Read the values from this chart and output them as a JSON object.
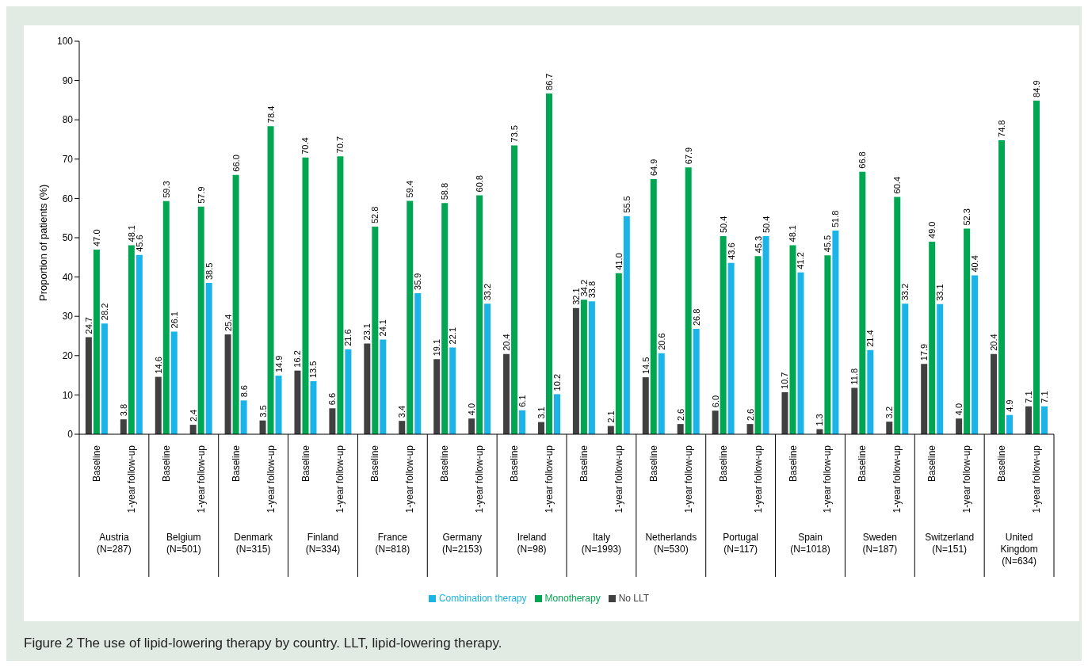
{
  "chart_data": {
    "type": "bar",
    "title": "Figure 2  The use of lipid-lowering therapy by country. LLT, lipid-lowering therapy.",
    "ylabel": "Proportion of patients (%)",
    "categories": [
      "Baseline",
      "1-year follow-up",
      "Baseline",
      "1-year follow-up",
      "Baseline",
      "1-year follow-up",
      "Baseline",
      "1-year follow-up",
      "Baseline",
      "1-year follow-up",
      "Baseline",
      "1-year follow-up",
      "Baseline",
      "1-year follow-up",
      "Baseline",
      "1-year follow-up",
      "Baseline",
      "1-year follow-up",
      "Baseline",
      "1-year follow-up",
      "Baseline",
      "1-year follow-up",
      "Baseline",
      "1-year follow-up",
      "Baseline",
      "1-year follow-up",
      "Baseline",
      "1-year follow-up"
    ],
    "annotations": [
      "Austria\n(N=287)",
      "Belgium\n(N=501)",
      "Denmark\n(N=315)",
      "Finland\n(N=334)",
      "France\n(N=818)",
      "Germany\n(N=2153)",
      "Ireland\n(N=98)",
      "Italy\n(N=1993)",
      "Netherlands\n(N=530)",
      "Portugal\n(N=117)",
      "Spain\n(N=1018)",
      "Sweden\n(N=187)",
      "Switzerland\n(N=151)",
      "United\nKingdom\n(N=634)"
    ],
    "series": [
      {
        "name": "No LLT",
        "color": "#404040",
        "values": [
          24.7,
          3.8,
          14.6,
          2.4,
          25.4,
          3.5,
          16.2,
          6.6,
          23.1,
          3.4,
          19.1,
          4.0,
          20.4,
          3.1,
          32.1,
          2.1,
          14.5,
          2.6,
          6.0,
          2.6,
          10.7,
          1.3,
          11.8,
          3.2,
          17.9,
          4.0,
          20.4,
          7.1
        ],
        "value_labels": [
          "24.7",
          "3.8",
          "14.6",
          "2.4",
          "25.4",
          "3.5",
          "16.2",
          "6.6",
          "23.1",
          "3.4",
          "19.1",
          "4.0",
          "20.4",
          "3.1",
          "32.1",
          "2.1",
          "14.5",
          "2.6",
          "6.0",
          "2.6",
          "10.7",
          "1.3",
          "11.8",
          "3.2",
          "17.9",
          "4.0",
          "20.4",
          "7.1"
        ]
      },
      {
        "name": "Monotherapy",
        "color": "#00a651",
        "values": [
          47.0,
          48.1,
          59.3,
          57.9,
          66.0,
          78.4,
          70.4,
          70.7,
          52.8,
          59.4,
          58.8,
          60.8,
          73.5,
          86.7,
          34.2,
          41.0,
          64.9,
          67.9,
          50.4,
          45.3,
          48.1,
          45.5,
          66.8,
          60.4,
          49.0,
          52.3,
          74.8,
          84.9
        ],
        "value_labels": [
          "47.0",
          "48.1",
          "59.3",
          "57.9",
          "66.0",
          "78.4",
          "70.4",
          "70.7",
          "52.8",
          "59.4",
          "58.8",
          "60.8",
          "73.5",
          "86.7",
          "34.2",
          "41.0",
          "64.9",
          "67.9",
          "50.4",
          "45.3",
          "48.1",
          "45.5",
          "66.8",
          "60.4",
          "49.0",
          "52.3",
          "74.8",
          "84.9"
        ]
      },
      {
        "name": "Combination therapy",
        "color": "#1ab4e8",
        "values": [
          28.2,
          45.6,
          26.1,
          38.5,
          8.6,
          14.9,
          13.5,
          21.6,
          24.1,
          35.9,
          22.1,
          33.2,
          6.1,
          10.2,
          33.8,
          55.5,
          20.6,
          26.8,
          43.6,
          50.4,
          41.2,
          51.8,
          21.4,
          33.2,
          33.1,
          40.4,
          4.9,
          7.1
        ],
        "value_labels": [
          "28.2",
          "45.6",
          "26.1",
          "38.5",
          "8.6",
          "14.9",
          "13.5",
          "21.6",
          "24.1",
          "35.9",
          "22.1",
          "33.2",
          "6.1",
          "10.2",
          "33.8",
          "55.5",
          "20.6",
          "26.8",
          "43.6",
          "50.4",
          "41.2",
          "51.8",
          "21.4",
          "33.2",
          "33.1",
          "40.4",
          "4.9",
          "7.1"
        ]
      }
    ],
    "ylim": [
      0,
      100
    ],
    "yticks": [
      0,
      10,
      20,
      30,
      40,
      50,
      60,
      70,
      80,
      90,
      100
    ],
    "grid": false,
    "legend": "bottom"
  }
}
